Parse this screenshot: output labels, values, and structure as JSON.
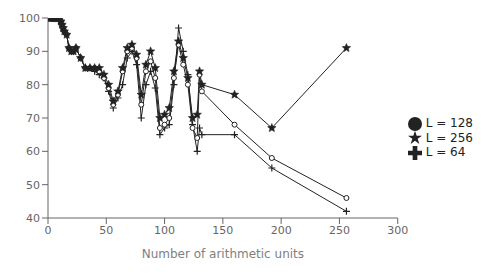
{
  "chart_data": {
    "type": "line",
    "xlabel": "Number of arithmetic units",
    "xlim": [
      0,
      300
    ],
    "ylim": [
      40,
      100
    ],
    "xticks": [
      0,
      50,
      100,
      150,
      200,
      250,
      300
    ],
    "yticks": [
      40,
      50,
      60,
      70,
      80,
      90,
      100
    ],
    "grid": false,
    "legend": "center right",
    "x": [
      1,
      2,
      3,
      4,
      5,
      6,
      7,
      8,
      9,
      10,
      11,
      12,
      13,
      14,
      16,
      18,
      20,
      22,
      24,
      28,
      32,
      36,
      40,
      44,
      48,
      52,
      56,
      60,
      64,
      68,
      72,
      76,
      80,
      84,
      88,
      92,
      96,
      100,
      104,
      108,
      112,
      116,
      120,
      124,
      128,
      130,
      132,
      160,
      192,
      256
    ],
    "series": [
      {
        "name": "L = 64",
        "color": "#222222",
        "marker": "plus",
        "values": [
          100,
          100,
          100,
          100,
          100,
          100,
          100,
          100,
          100,
          100,
          99,
          98,
          97,
          96,
          95,
          91,
          90,
          90,
          91,
          88,
          85,
          85,
          84,
          83,
          82,
          78,
          73,
          76,
          80,
          88,
          90,
          86,
          70,
          80,
          84,
          79,
          65,
          67,
          68,
          80,
          97,
          90,
          83,
          68,
          60,
          67,
          65,
          65,
          55,
          42
        ]
      },
      {
        "name": "L = 128",
        "color": "#222222",
        "marker": "circle",
        "values": [
          100,
          100,
          100,
          100,
          100,
          100,
          100,
          100,
          100,
          100,
          99,
          98,
          97,
          96,
          95,
          91,
          90,
          90,
          91,
          88,
          85,
          85,
          85,
          84,
          82,
          79,
          74,
          77,
          84,
          90,
          91,
          88,
          74,
          84,
          87,
          82,
          67,
          68,
          70,
          82,
          92,
          86,
          80,
          67,
          64,
          83,
          78,
          68,
          58,
          46
        ]
      },
      {
        "name": "L = 256",
        "color": "#222222",
        "marker": "star",
        "values": [
          100,
          100,
          100,
          100,
          100,
          100,
          100,
          100,
          100,
          100,
          99,
          98,
          97,
          96,
          95,
          91,
          90,
          90,
          91,
          88,
          85,
          85,
          85,
          85,
          83,
          80,
          75,
          78,
          85,
          91,
          92,
          89,
          77,
          86,
          90,
          85,
          70,
          71,
          73,
          84,
          93,
          88,
          82,
          70,
          71,
          84,
          80,
          77,
          67,
          91
        ]
      }
    ]
  }
}
